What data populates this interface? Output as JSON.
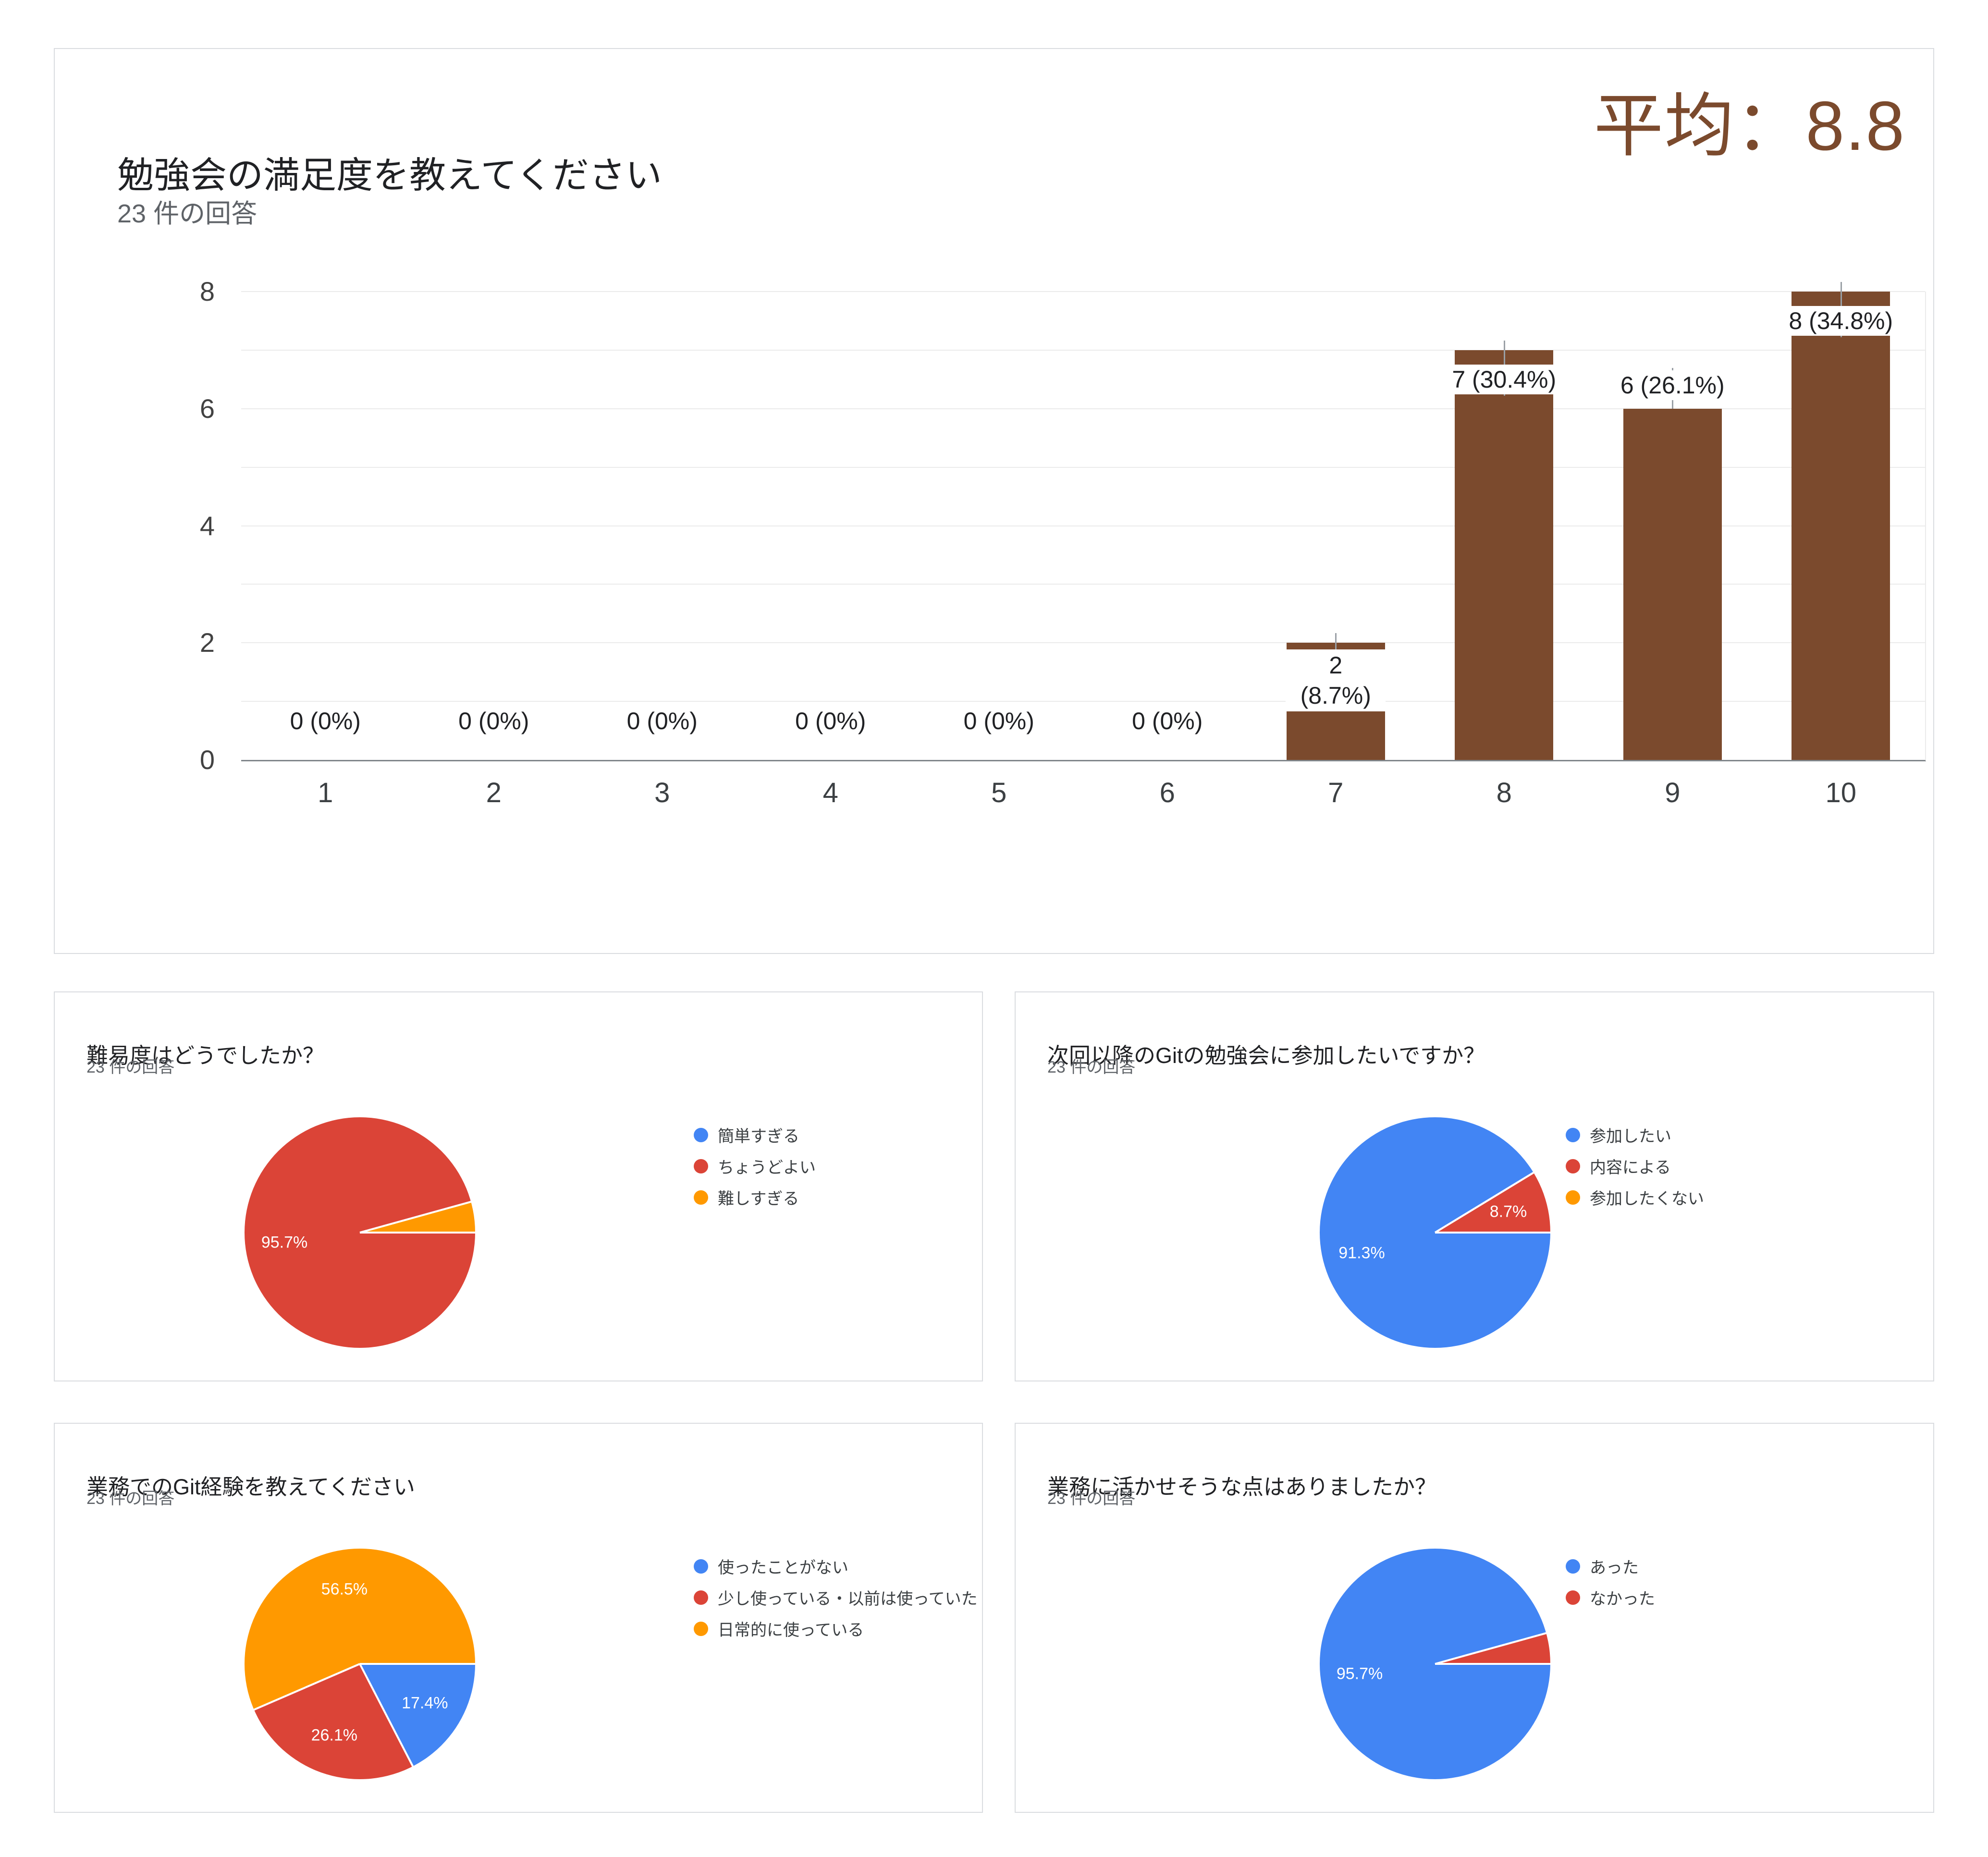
{
  "colors": {
    "blue": "#4285F4",
    "red": "#DB4437",
    "orange": "#FF9900",
    "brown": "#7B4A2D",
    "card_border": "#DADCE0"
  },
  "chart_data": [
    {
      "type": "bar",
      "title": "勉強会の満足度を教えてください",
      "subtitle": "23 件の回答",
      "average_label": "平均：8.8",
      "average": 8.8,
      "categories": [
        "1",
        "2",
        "3",
        "4",
        "5",
        "6",
        "7",
        "8",
        "9",
        "10"
      ],
      "values": [
        0,
        0,
        0,
        0,
        0,
        0,
        2,
        7,
        6,
        8
      ],
      "annotations": [
        "0 (0%)",
        "0 (0%)",
        "0 (0%)",
        "0 (0%)",
        "0 (0%)",
        "0 (0%)",
        "2 (8.7%)",
        "7 (30.4%)",
        "6 (26.1%)",
        "8 (34.8%)"
      ],
      "ylim": [
        0,
        8
      ],
      "yticks": [
        0,
        2,
        4,
        6,
        8
      ],
      "bar_color": "#7B4A2D",
      "grid": true,
      "legend_position": "none"
    },
    {
      "type": "pie",
      "title": "難易度はどうでしたか？",
      "subtitle": "23 件の回答",
      "legend_position": "right",
      "slices": [
        {
          "label": "簡単すぎる",
          "percent": 0,
          "color": "#4285F4",
          "data_label": ""
        },
        {
          "label": "ちょうどよい",
          "percent": 95.7,
          "color": "#DB4437",
          "data_label": "95.7%"
        },
        {
          "label": "難しすぎる",
          "percent": 4.3,
          "color": "#FF9900",
          "data_label": ""
        }
      ]
    },
    {
      "type": "pie",
      "title": "次回以降のGitの勉強会に参加したいですか？",
      "subtitle": "23 件の回答",
      "legend_position": "right",
      "slices": [
        {
          "label": "参加したい",
          "percent": 91.3,
          "color": "#4285F4",
          "data_label": "91.3%"
        },
        {
          "label": "内容による",
          "percent": 8.7,
          "color": "#DB4437",
          "data_label": "8.7%"
        },
        {
          "label": "参加したくない",
          "percent": 0,
          "color": "#FF9900",
          "data_label": ""
        }
      ]
    },
    {
      "type": "pie",
      "title": "業務でのGit経験を教えてください",
      "subtitle": "23 件の回答",
      "legend_position": "right",
      "slices": [
        {
          "label": "使ったことがない",
          "percent": 17.4,
          "color": "#4285F4",
          "data_label": "17.4%"
        },
        {
          "label": "少し使っている・以前は使っていた",
          "percent": 26.1,
          "color": "#DB4437",
          "data_label": "26.1%"
        },
        {
          "label": "日常的に使っている",
          "percent": 56.5,
          "color": "#FF9900",
          "data_label": "56.5%"
        }
      ]
    },
    {
      "type": "pie",
      "title": "業務に活かせそうな点はありましたか？",
      "subtitle": "23 件の回答",
      "legend_position": "right",
      "slices": [
        {
          "label": "あった",
          "percent": 95.7,
          "color": "#4285F4",
          "data_label": "95.7%"
        },
        {
          "label": "なかった",
          "percent": 4.3,
          "color": "#DB4437",
          "data_label": ""
        }
      ]
    }
  ]
}
